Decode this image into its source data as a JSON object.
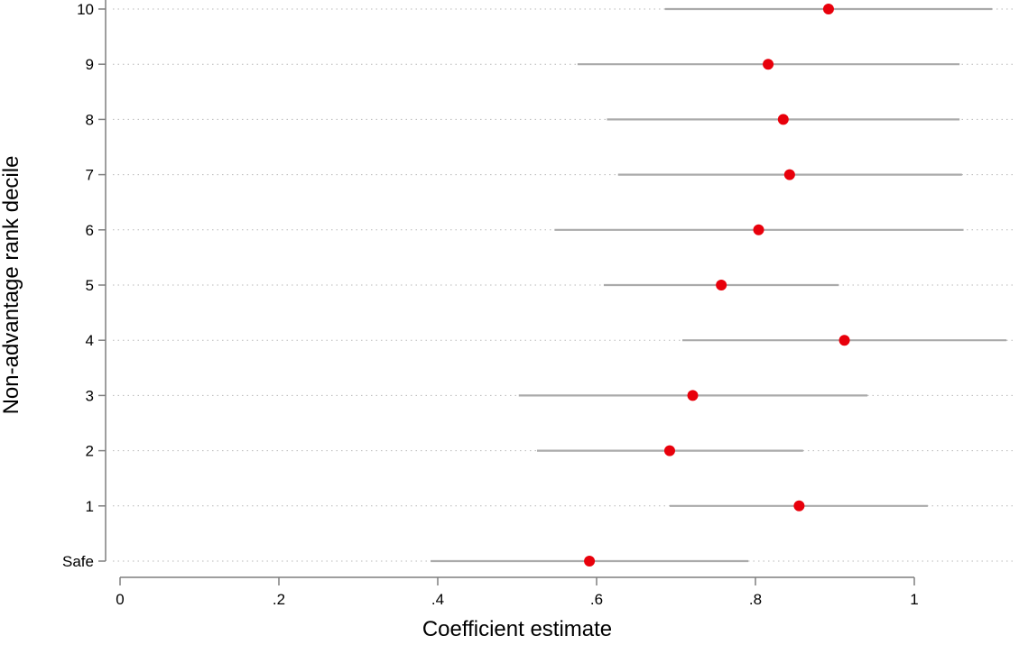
{
  "chart_data": {
    "type": "scatter",
    "subtype": "coefficient-plot-with-confidence-intervals",
    "xlabel": "Coefficient estimate",
    "ylabel": "Non-advantage rank decile",
    "xlim": [
      0,
      1.12
    ],
    "x_ticks": [
      "0",
      ".2",
      ".4",
      ".6",
      ".8",
      "1"
    ],
    "x_tick_values": [
      0,
      0.2,
      0.4,
      0.6,
      0.8,
      1.0
    ],
    "categories": [
      "Safe",
      "1",
      "2",
      "3",
      "4",
      "5",
      "6",
      "7",
      "8",
      "9",
      "10"
    ],
    "estimates": [
      0.591,
      0.855,
      0.692,
      0.721,
      0.912,
      0.757,
      0.804,
      0.843,
      0.835,
      0.816,
      0.892
    ],
    "ci_low": [
      0.391,
      0.692,
      0.525,
      0.502,
      0.708,
      0.609,
      0.547,
      0.627,
      0.613,
      0.576,
      0.686
    ],
    "ci_high": [
      0.791,
      1.017,
      0.86,
      0.941,
      1.116,
      0.905,
      1.062,
      1.06,
      1.057,
      1.057,
      1.098
    ],
    "grid": "horizontal-dotted",
    "colors": {
      "point": "#e8000b",
      "ci": "#aaaaaa",
      "grid": "#b8b8b8",
      "axis": "#7f7f7f"
    }
  }
}
